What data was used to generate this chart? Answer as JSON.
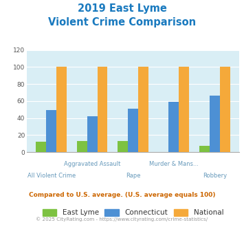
{
  "title_line1": "2019 East Lyme",
  "title_line2": "Violent Crime Comparison",
  "title_color": "#1a7abf",
  "categories_top": [
    "Aggravated Assault",
    "Murder & Mans..."
  ],
  "categories_bottom": [
    "All Violent Crime",
    "Rape",
    "Robbery"
  ],
  "cat_positions": [
    0,
    1,
    2,
    3,
    4
  ],
  "east_lyme": [
    12,
    13,
    13,
    0,
    7
  ],
  "connecticut": [
    49,
    42,
    51,
    59,
    66
  ],
  "national": [
    100,
    100,
    100,
    100,
    100
  ],
  "color_east_lyme": "#7dc242",
  "color_connecticut": "#4d90d4",
  "color_national": "#f5a93a",
  "ylim": [
    0,
    120
  ],
  "yticks": [
    0,
    20,
    40,
    60,
    80,
    100,
    120
  ],
  "bg_color": "#d9eef5",
  "note": "Compared to U.S. average. (U.S. average equals 100)",
  "note_color": "#cc6600",
  "footer": "© 2025 CityRating.com - https://www.cityrating.com/crime-statistics/",
  "footer_color": "#999999",
  "legend_labels": [
    "East Lyme",
    "Connecticut",
    "National"
  ],
  "bar_width": 0.25
}
